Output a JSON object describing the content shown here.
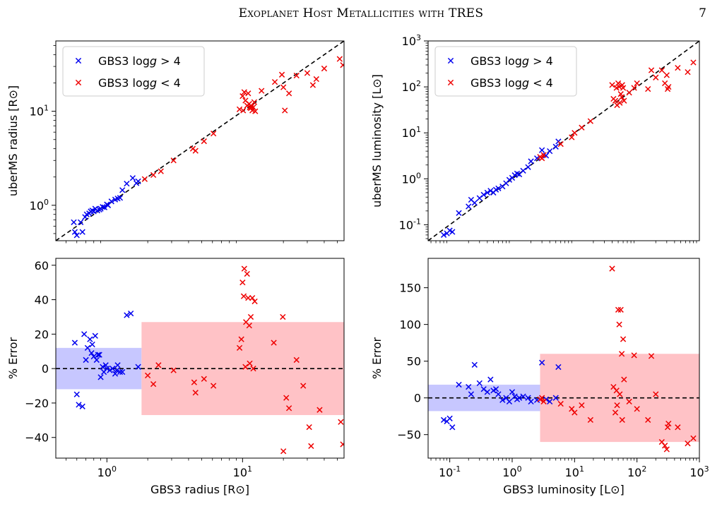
{
  "header": {
    "running_title": "Exoplanet Host Metallicities with TRES",
    "page_number": "7"
  },
  "legend": {
    "low_g_pre": "GBS3 log",
    "high_g_pre": "GBS3 log",
    "g_symbol": "g",
    "high_g_post": " > 4",
    "low_g_post": " < 4",
    "blue": "#0000ee",
    "red": "#ee0000"
  },
  "colors": {
    "blue_band": "#c7c7ff",
    "red_band": "#ffc2c6",
    "blue": "#0000ee",
    "red": "#ee0000"
  },
  "chart_data": [
    {
      "panel": "radius-comparison",
      "type": "scatter",
      "xscale": "log",
      "yscale": "log",
      "xlim": [
        0.42,
        56
      ],
      "ylim": [
        0.42,
        56
      ],
      "ylabel": "uberMS radius [R⊙]",
      "xticks": [],
      "xtick_labels": [],
      "yticks": [
        1,
        10
      ],
      "ytick_labels": [
        "10^0",
        "10^1"
      ],
      "one_to_one_line": true,
      "legend_position": "top-left",
      "series": [
        {
          "name": "GBS3 logg > 4",
          "color": "#0000ee",
          "x": [
            0.57,
            0.58,
            0.6,
            0.64,
            0.66,
            0.69,
            0.71,
            0.74,
            0.76,
            0.78,
            0.8,
            0.82,
            0.85,
            0.88,
            0.9,
            0.93,
            0.96,
            1.0,
            1.02,
            1.08,
            1.15,
            1.2,
            1.25,
            1.3,
            1.4,
            1.55,
            1.65,
            1.7
          ],
          "y": [
            0.66,
            0.52,
            0.48,
            0.66,
            0.52,
            0.75,
            0.8,
            0.82,
            0.86,
            0.88,
            0.86,
            0.92,
            0.88,
            0.9,
            0.92,
            0.96,
            0.95,
            1.02,
            1.0,
            1.1,
            1.15,
            1.18,
            1.2,
            1.45,
            1.7,
            1.95,
            1.72,
            1.8
          ]
        },
        {
          "name": "GBS3 logg < 4",
          "color": "#ee0000",
          "x": [
            1.9,
            2.2,
            2.5,
            3.1,
            4.3,
            4.5,
            5.2,
            6.1,
            9.5,
            10.0,
            10.1,
            10.3,
            10.5,
            10.8,
            11.0,
            11.2,
            11.3,
            11.5,
            11.6,
            11.8,
            12.0,
            12.2,
            12.4,
            13.8,
            17.3,
            19.5,
            20.0,
            20.5,
            22.0,
            25.0,
            30.0,
            33.0,
            35.0,
            40.0,
            52.0,
            55.0
          ],
          "y": [
            1.9,
            2.1,
            2.3,
            3.0,
            4.0,
            3.8,
            4.8,
            5.8,
            10.5,
            14.5,
            10.2,
            16.0,
            13.0,
            11.5,
            15.5,
            12.0,
            11.0,
            10.8,
            11.2,
            10.2,
            11.0,
            12.5,
            10.0,
            16.5,
            20.5,
            24.5,
            18.0,
            10.2,
            15.5,
            24.0,
            25.5,
            19.0,
            22.0,
            28.5,
            36.0,
            31.0
          ]
        }
      ]
    },
    {
      "panel": "luminosity-comparison",
      "type": "scatter",
      "xscale": "log",
      "yscale": "log",
      "xlim": [
        0.045,
        1000
      ],
      "ylim": [
        0.045,
        1000
      ],
      "ylabel": "uberMS luminosity [L⊙]",
      "xticks": [],
      "xtick_labels": [],
      "yticks": [
        0.1,
        1,
        10,
        100,
        1000
      ],
      "ytick_labels": [
        "10^-1",
        "10^0",
        "10^1",
        "10^2",
        "10^3"
      ],
      "one_to_one_line": true,
      "legend_position": "top-left",
      "series": [
        {
          "name": "GBS3 logg > 4",
          "color": "#0000ee",
          "x": [
            0.08,
            0.09,
            0.1,
            0.11,
            0.14,
            0.2,
            0.22,
            0.25,
            0.3,
            0.35,
            0.4,
            0.45,
            0.5,
            0.55,
            0.6,
            0.7,
            0.8,
            0.9,
            1.0,
            1.1,
            1.2,
            1.3,
            1.5,
            1.8,
            2.0,
            2.5,
            3.0,
            3.5,
            4.0,
            5.0,
            5.5
          ],
          "y": [
            0.06,
            0.065,
            0.075,
            0.07,
            0.18,
            0.25,
            0.35,
            0.3,
            0.38,
            0.45,
            0.5,
            0.55,
            0.5,
            0.58,
            0.62,
            0.68,
            0.8,
            0.95,
            1.05,
            1.2,
            1.3,
            1.25,
            1.5,
            1.8,
            2.4,
            2.8,
            4.2,
            3.2,
            4.0,
            5.0,
            6.5
          ]
        },
        {
          "name": "GBS3 logg < 4",
          "color": "#ee0000",
          "x": [
            2.8,
            3.0,
            3.2,
            6.0,
            9.0,
            10.0,
            13.0,
            18.0,
            40.0,
            42.0,
            45.0,
            47.0,
            48.0,
            50.0,
            52.0,
            53.0,
            55.0,
            57.0,
            58.0,
            60.0,
            62.0,
            75.0,
            90.0,
            100.0,
            150.0,
            170.0,
            200.0,
            250.0,
            280.0,
            300.0,
            310.0,
            320.0,
            450.0,
            650.0,
            800.0
          ],
          "y": [
            3.0,
            2.8,
            3.3,
            5.7,
            8.0,
            10.0,
            13.0,
            18.0,
            110.0,
            55.0,
            50.0,
            95.0,
            40.0,
            120.0,
            100.0,
            45.0,
            70.0,
            60.0,
            110.0,
            95.0,
            50.0,
            75.0,
            95.0,
            120.0,
            90.0,
            230.0,
            160.0,
            230.0,
            120.0,
            180.0,
            90.0,
            100.0,
            260.0,
            210.0,
            340.0
          ]
        }
      ]
    },
    {
      "panel": "radius-error",
      "type": "scatter",
      "xscale": "log",
      "yscale": "linear",
      "xlim": [
        0.42,
        56
      ],
      "ylim": [
        -52,
        64
      ],
      "xlabel": "GBS3 radius [R⊙]",
      "ylabel": "% Error",
      "xticks": [
        1,
        10
      ],
      "xtick_labels": [
        "10^0",
        "10^1"
      ],
      "yticks": [
        -40,
        -20,
        0,
        20,
        40,
        60
      ],
      "ytick_labels": [
        "−40",
        "−20",
        "0",
        "20",
        "40",
        "60"
      ],
      "zero_line": true,
      "bands": [
        {
          "color": "blue",
          "x": [
            0.42,
            1.8
          ],
          "y": [
            -12,
            12
          ]
        },
        {
          "color": "red",
          "x": [
            1.8,
            56
          ],
          "y": [
            -27,
            27
          ]
        }
      ],
      "series": [
        {
          "name": "GBS3 logg > 4",
          "color": "#0000ee",
          "x": [
            0.58,
            0.6,
            0.62,
            0.66,
            0.68,
            0.7,
            0.72,
            0.75,
            0.77,
            0.78,
            0.8,
            0.82,
            0.84,
            0.86,
            0.88,
            0.9,
            0.93,
            0.95,
            0.98,
            1.0,
            1.05,
            1.1,
            1.15,
            1.18,
            1.2,
            1.25,
            1.3,
            1.4,
            1.5,
            1.7
          ],
          "y": [
            15,
            -15,
            -21,
            -22,
            20,
            5,
            12,
            17,
            9,
            14,
            7,
            19,
            5,
            8,
            8,
            -5,
            1,
            -2,
            2,
            0,
            -1,
            0,
            -3,
            -1,
            2,
            -2,
            -2,
            31,
            32,
            1
          ]
        },
        {
          "name": "GBS3 logg < 4",
          "color": "#ee0000",
          "x": [
            2.0,
            2.2,
            2.4,
            3.1,
            4.4,
            4.5,
            5.2,
            6.1,
            9.5,
            9.8,
            10.0,
            10.2,
            10.3,
            10.5,
            10.6,
            10.8,
            11.0,
            11.2,
            11.3,
            11.5,
            11.8,
            12.0,
            12.3,
            17.0,
            19.8,
            20.0,
            21.0,
            22.0,
            25.0,
            28.0,
            31.0,
            32.0,
            37.0,
            53.0,
            55.0
          ],
          "y": [
            -4,
            -9,
            2,
            -1,
            -8,
            -14,
            -6,
            -10,
            12,
            17,
            50,
            42,
            58,
            1,
            27,
            55,
            41,
            25,
            3,
            30,
            41,
            0,
            39,
            15,
            30,
            -48,
            -17,
            -23,
            5,
            -10,
            -34,
            -45,
            -24,
            -31,
            -44
          ]
        }
      ]
    },
    {
      "panel": "luminosity-error",
      "type": "scatter",
      "xscale": "log",
      "yscale": "linear",
      "xlim": [
        0.045,
        1000
      ],
      "ylim": [
        -82,
        190
      ],
      "xlabel": "GBS3 luminosity [L⊙]",
      "ylabel": "% Error",
      "xticks": [
        0.1,
        1,
        10,
        100,
        1000
      ],
      "xtick_labels": [
        "10^-1",
        "10^0",
        "10^1",
        "10^2",
        "10^3"
      ],
      "yticks": [
        -50,
        0,
        50,
        100,
        150
      ],
      "ytick_labels": [
        "−50",
        "0",
        "50",
        "100",
        "150"
      ],
      "zero_line": true,
      "bands": [
        {
          "color": "blue",
          "x": [
            0.045,
            5.5
          ],
          "y": [
            -18,
            18
          ]
        },
        {
          "color": "red",
          "x": [
            2.8,
            1000
          ],
          "y": [
            -60,
            60
          ]
        }
      ],
      "series": [
        {
          "name": "GBS3 logg > 4",
          "color": "#0000ee",
          "x": [
            0.08,
            0.09,
            0.1,
            0.11,
            0.14,
            0.2,
            0.22,
            0.25,
            0.3,
            0.35,
            0.4,
            0.45,
            0.5,
            0.55,
            0.6,
            0.7,
            0.8,
            0.9,
            1.0,
            1.1,
            1.2,
            1.3,
            1.5,
            1.8,
            2.0,
            2.5,
            3.0,
            3.5,
            4.0,
            5.0,
            5.5
          ],
          "y": [
            -30,
            -32,
            -28,
            -40,
            18,
            15,
            5,
            45,
            20,
            12,
            8,
            25,
            10,
            12,
            5,
            -3,
            0,
            -5,
            8,
            2,
            -2,
            0,
            2,
            0,
            -5,
            -3,
            48,
            -2,
            -5,
            0,
            42
          ]
        },
        {
          "name": "GBS3 logg < 4",
          "color": "#ee0000",
          "x": [
            2.8,
            3.0,
            3.2,
            6.0,
            9.0,
            10.0,
            13.0,
            18.0,
            40.0,
            42.0,
            45.0,
            47.0,
            48.0,
            50.0,
            52.0,
            53.0,
            55.0,
            57.0,
            58.0,
            60.0,
            62.0,
            75.0,
            90.0,
            100.0,
            150.0,
            170.0,
            200.0,
            250.0,
            280.0,
            300.0,
            310.0,
            320.0,
            450.0,
            650.0,
            800.0
          ],
          "y": [
            -2,
            0,
            -5,
            -8,
            -15,
            -20,
            -10,
            -30,
            176,
            15,
            -20,
            10,
            -10,
            120,
            100,
            5,
            120,
            60,
            -30,
            80,
            25,
            -5,
            58,
            -15,
            -30,
            57,
            5,
            -60,
            -65,
            -70,
            -40,
            -35,
            -40,
            -62,
            -55
          ]
        }
      ]
    }
  ]
}
